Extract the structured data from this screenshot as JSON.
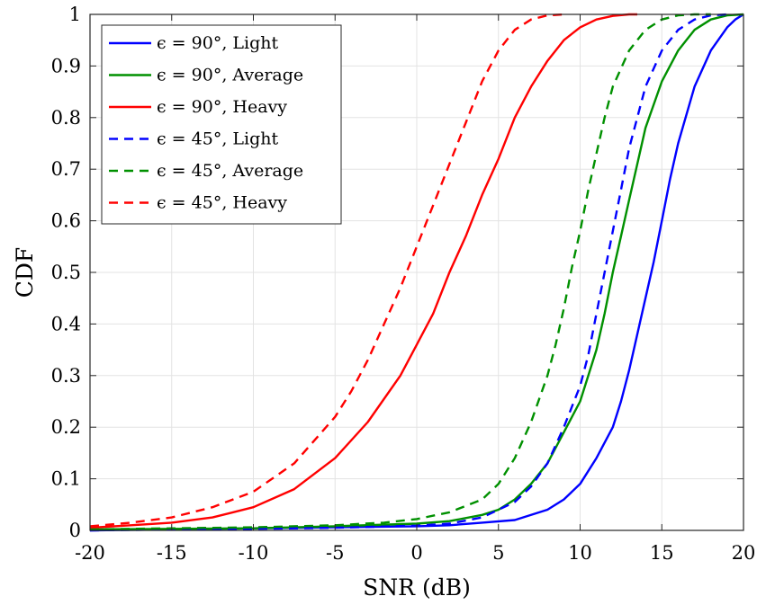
{
  "chart_data": {
    "type": "line",
    "title": "",
    "xlabel": "SNR (dB)",
    "ylabel": "CDF",
    "xlim": [
      -20,
      20
    ],
    "ylim": [
      0,
      1
    ],
    "x_ticks": [
      "-20",
      "-15",
      "-10",
      "-5",
      "0",
      "5",
      "10",
      "15",
      "20"
    ],
    "y_ticks": [
      "0",
      "0.1",
      "0.2",
      "0.3",
      "0.4",
      "0.5",
      "0.6",
      "0.7",
      "0.8",
      "0.9",
      "1"
    ],
    "grid": true,
    "legend_position": "top-left",
    "series": [
      {
        "name": "ϵ = 90°, Light",
        "color": "#0000ff",
        "dash": "solid",
        "x": [
          -20,
          -15,
          -10,
          -5,
          0,
          2,
          4,
          6,
          8,
          9,
          10,
          11,
          12,
          12.5,
          13,
          13.5,
          14,
          14.5,
          15,
          15.5,
          16,
          17,
          18,
          19,
          19.5,
          20
        ],
        "y": [
          0,
          0.002,
          0.004,
          0.006,
          0.008,
          0.01,
          0.015,
          0.02,
          0.04,
          0.06,
          0.09,
          0.14,
          0.2,
          0.25,
          0.31,
          0.38,
          0.45,
          0.52,
          0.6,
          0.68,
          0.75,
          0.86,
          0.93,
          0.975,
          0.99,
          1
        ]
      },
      {
        "name": "ϵ = 90°, Average",
        "color": "#009000",
        "dash": "solid",
        "x": [
          -20,
          -15,
          -10,
          -5,
          0,
          2,
          4,
          5,
          6,
          7,
          8,
          9,
          10,
          10.5,
          11,
          11.5,
          12,
          12.5,
          13,
          13.5,
          14,
          15,
          16,
          17,
          18,
          19,
          20
        ],
        "y": [
          0.002,
          0.003,
          0.004,
          0.008,
          0.013,
          0.018,
          0.03,
          0.04,
          0.06,
          0.09,
          0.13,
          0.19,
          0.25,
          0.3,
          0.35,
          0.42,
          0.5,
          0.57,
          0.64,
          0.71,
          0.78,
          0.87,
          0.93,
          0.97,
          0.99,
          0.998,
          1
        ]
      },
      {
        "name": "ϵ = 90°, Heavy",
        "color": "#ff0000",
        "dash": "solid",
        "x": [
          -20,
          -17.5,
          -15,
          -12.5,
          -10,
          -7.5,
          -5,
          -3,
          -1,
          0,
          1,
          2,
          3,
          4,
          5,
          6,
          7,
          8,
          9,
          10,
          11,
          12,
          13,
          13.5
        ],
        "y": [
          0.005,
          0.01,
          0.015,
          0.025,
          0.045,
          0.08,
          0.14,
          0.21,
          0.3,
          0.36,
          0.42,
          0.5,
          0.57,
          0.65,
          0.72,
          0.8,
          0.86,
          0.91,
          0.95,
          0.975,
          0.99,
          0.997,
          1,
          1
        ]
      },
      {
        "name": "ϵ = 45°, Light",
        "color": "#0000ff",
        "dash": "dashed",
        "x": [
          -20,
          -15,
          -10,
          -5,
          0,
          2,
          4,
          6,
          7,
          8,
          9,
          10,
          10.5,
          11,
          11.5,
          12,
          12.5,
          13,
          13.5,
          14,
          15,
          16,
          17,
          18,
          19
        ],
        "y": [
          0,
          0.002,
          0.003,
          0.005,
          0.009,
          0.013,
          0.025,
          0.055,
          0.085,
          0.13,
          0.2,
          0.28,
          0.34,
          0.42,
          0.5,
          0.58,
          0.66,
          0.74,
          0.8,
          0.86,
          0.93,
          0.97,
          0.99,
          0.998,
          1
        ]
      },
      {
        "name": "ϵ = 45°, Average",
        "color": "#009000",
        "dash": "dashed",
        "x": [
          -20,
          -15,
          -10,
          -5,
          -2,
          0,
          2,
          4,
          5,
          6,
          7,
          8,
          8.5,
          9,
          9.5,
          10,
          10.5,
          11,
          11.5,
          12,
          13,
          14,
          15,
          16,
          17,
          18
        ],
        "y": [
          0.002,
          0.004,
          0.006,
          0.01,
          0.015,
          0.022,
          0.035,
          0.06,
          0.09,
          0.14,
          0.21,
          0.3,
          0.36,
          0.43,
          0.51,
          0.58,
          0.66,
          0.73,
          0.8,
          0.86,
          0.93,
          0.97,
          0.99,
          0.998,
          1,
          1
        ]
      },
      {
        "name": "ϵ = 45°, Heavy",
        "color": "#ff0000",
        "dash": "dashed",
        "x": [
          -20,
          -17.5,
          -15,
          -12.5,
          -10,
          -7.5,
          -5,
          -4,
          -3,
          -2,
          -1,
          0,
          1,
          2,
          3,
          4,
          5,
          6,
          7,
          8,
          9
        ],
        "y": [
          0.008,
          0.015,
          0.025,
          0.045,
          0.075,
          0.13,
          0.22,
          0.27,
          0.33,
          0.4,
          0.47,
          0.55,
          0.63,
          0.71,
          0.79,
          0.87,
          0.93,
          0.97,
          0.99,
          0.998,
          1
        ]
      }
    ]
  }
}
